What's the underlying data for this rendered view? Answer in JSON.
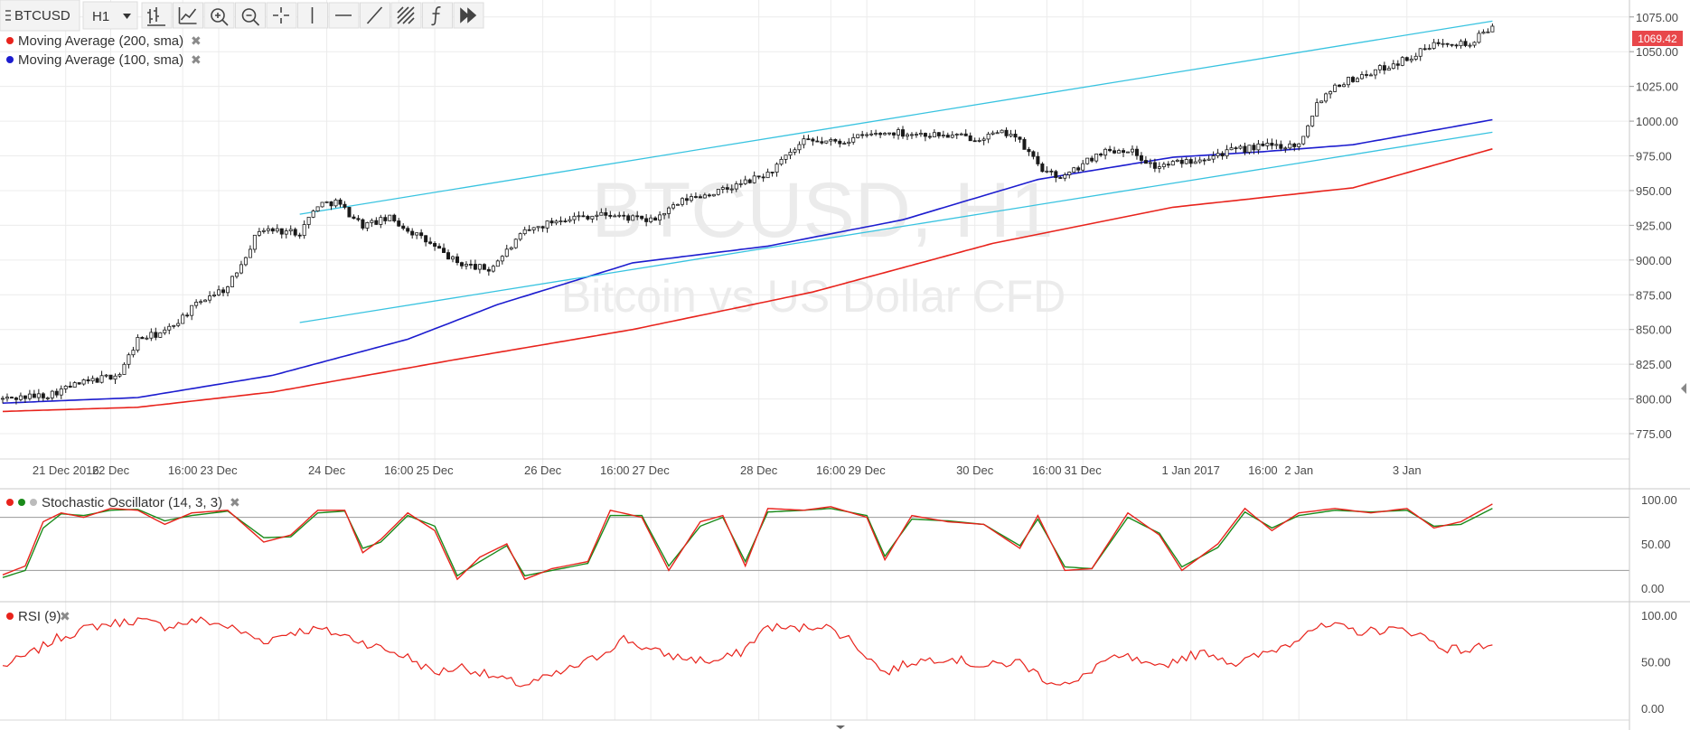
{
  "toolbar": {
    "symbol": "BTCUSD",
    "interval": "H1",
    "tools": [
      {
        "icon": "bar-style-icon"
      },
      {
        "icon": "indicators-icon"
      },
      {
        "icon": "zoom-in-icon"
      },
      {
        "icon": "zoom-out-icon"
      },
      {
        "icon": "crosshair-icon"
      },
      {
        "icon": "vertical-line-icon"
      },
      {
        "icon": "horizontal-line-icon"
      },
      {
        "icon": "trend-line-icon"
      },
      {
        "icon": "fib-icon"
      },
      {
        "icon": "function-icon"
      },
      {
        "icon": "forward-icon"
      }
    ]
  },
  "legend": [
    {
      "label": "Moving Average (200, sma)",
      "color": "#e8231c"
    },
    {
      "label": "Moving Average (100, sma)",
      "color": "#1c1ccf"
    }
  ],
  "watermark": {
    "symbol": "BTCUSD, H1",
    "description": "Bitcoin vs US Dollar CFD"
  },
  "price_badge": "1069.42",
  "stoch_label": "Stochastic Oscillator (14, 3, 3)",
  "rsi_label": "RSI (9)",
  "colors": {
    "candle": "#1a1a1a",
    "ma200": "#e8231c",
    "ma100": "#1c1ccf",
    "channel": "#38c3e0",
    "badge": "#e8474a",
    "stoch_k": "#e8231c",
    "stoch_d": "#1a8a1a",
    "rsi": "#e8231c",
    "grid": "#ececec"
  },
  "chart_data": {
    "type": "candlestick",
    "title": "BTCUSD, H1",
    "subtitle": "Bitcoin vs US Dollar CFD",
    "ylim": [
      762,
      1082
    ],
    "y_ticks": [
      "1075.00",
      "1050.00",
      "1025.00",
      "1000.00",
      "975.00",
      "950.00",
      "925.00",
      "900.00",
      "875.00",
      "850.00",
      "825.00",
      "800.00",
      "775.00"
    ],
    "x_ticks": [
      {
        "label": "21 Dec 2016",
        "bar": 14
      },
      {
        "label": "22 Dec",
        "bar": 24
      },
      {
        "label": "16:00",
        "bar": 40
      },
      {
        "label": "23 Dec",
        "bar": 48
      },
      {
        "label": "24 Dec",
        "bar": 72
      },
      {
        "label": "16:00",
        "bar": 88
      },
      {
        "label": "25 Dec",
        "bar": 96
      },
      {
        "label": "26 Dec",
        "bar": 120
      },
      {
        "label": "16:00",
        "bar": 136
      },
      {
        "label": "27 Dec",
        "bar": 144
      },
      {
        "label": "28 Dec",
        "bar": 168
      },
      {
        "label": "16:00",
        "bar": 184
      },
      {
        "label": "29 Dec",
        "bar": 192
      },
      {
        "label": "30 Dec",
        "bar": 216
      },
      {
        "label": "16:00",
        "bar": 232
      },
      {
        "label": "31 Dec",
        "bar": 240
      },
      {
        "label": "1 Jan 2017",
        "bar": 264
      },
      {
        "label": "16:00",
        "bar": 280
      },
      {
        "label": "2 Jan",
        "bar": 288
      },
      {
        "label": "3 Jan",
        "bar": 312
      }
    ],
    "bars": 331,
    "close_anchors": [
      [
        0,
        800
      ],
      [
        10,
        803
      ],
      [
        16,
        810
      ],
      [
        26,
        818
      ],
      [
        30,
        843
      ],
      [
        36,
        848
      ],
      [
        42,
        865
      ],
      [
        46,
        875
      ],
      [
        50,
        880
      ],
      [
        57,
        922
      ],
      [
        66,
        920
      ],
      [
        70,
        940
      ],
      [
        74,
        942
      ],
      [
        80,
        925
      ],
      [
        86,
        930
      ],
      [
        92,
        918
      ],
      [
        101,
        898
      ],
      [
        108,
        893
      ],
      [
        116,
        920
      ],
      [
        124,
        930
      ],
      [
        134,
        933
      ],
      [
        144,
        928
      ],
      [
        152,
        944
      ],
      [
        160,
        950
      ],
      [
        170,
        962
      ],
      [
        178,
        985
      ],
      [
        186,
        985
      ],
      [
        192,
        990
      ],
      [
        198,
        992
      ],
      [
        208,
        990
      ],
      [
        216,
        988
      ],
      [
        224,
        992
      ],
      [
        232,
        962
      ],
      [
        236,
        960
      ],
      [
        244,
        978
      ],
      [
        250,
        980
      ],
      [
        256,
        967
      ],
      [
        264,
        972
      ],
      [
        272,
        978
      ],
      [
        280,
        982
      ],
      [
        288,
        983
      ],
      [
        292,
        1013
      ],
      [
        296,
        1026
      ],
      [
        304,
        1035
      ],
      [
        312,
        1045
      ],
      [
        320,
        1058
      ],
      [
        326,
        1055
      ],
      [
        331,
        1069.42
      ]
    ],
    "series": [
      {
        "name": "Moving Average (200, sma)",
        "points": [
          [
            0,
            791
          ],
          [
            30,
            794
          ],
          [
            60,
            805
          ],
          [
            100,
            828
          ],
          [
            140,
            850
          ],
          [
            180,
            877
          ],
          [
            220,
            912
          ],
          [
            260,
            938
          ],
          [
            300,
            952
          ],
          [
            331,
            980
          ]
        ]
      },
      {
        "name": "Moving Average (100, sma)",
        "points": [
          [
            0,
            797
          ],
          [
            30,
            801
          ],
          [
            60,
            817
          ],
          [
            90,
            843
          ],
          [
            110,
            868
          ],
          [
            140,
            898
          ],
          [
            170,
            910
          ],
          [
            200,
            929
          ],
          [
            230,
            958
          ],
          [
            260,
            974
          ],
          [
            280,
            978
          ],
          [
            300,
            983
          ],
          [
            331,
            1001
          ]
        ]
      }
    ],
    "channel_lines": [
      {
        "from": [
          66,
          933
        ],
        "to": [
          331,
          1072
        ]
      },
      {
        "from": [
          66,
          855
        ],
        "to": [
          331,
          992
        ]
      }
    ],
    "stochastic": {
      "ylim": [
        0,
        100
      ],
      "y_ticks": [
        "100.00",
        "50.00",
        "0.00"
      ],
      "levels": [
        80,
        20
      ],
      "k": [
        [
          0,
          15
        ],
        [
          5,
          25
        ],
        [
          9,
          75
        ],
        [
          13,
          85
        ],
        [
          18,
          80
        ],
        [
          24,
          90
        ],
        [
          30,
          88
        ],
        [
          36,
          72
        ],
        [
          42,
          85
        ],
        [
          50,
          88
        ],
        [
          58,
          52
        ],
        [
          64,
          60
        ],
        [
          70,
          88
        ],
        [
          76,
          88
        ],
        [
          80,
          40
        ],
        [
          84,
          55
        ],
        [
          90,
          85
        ],
        [
          96,
          65
        ],
        [
          101,
          10
        ],
        [
          106,
          35
        ],
        [
          112,
          50
        ],
        [
          116,
          10
        ],
        [
          122,
          22
        ],
        [
          130,
          30
        ],
        [
          135,
          88
        ],
        [
          142,
          80
        ],
        [
          148,
          20
        ],
        [
          155,
          75
        ],
        [
          160,
          82
        ],
        [
          165,
          25
        ],
        [
          170,
          90
        ],
        [
          178,
          88
        ],
        [
          184,
          92
        ],
        [
          192,
          80
        ],
        [
          196,
          32
        ],
        [
          202,
          82
        ],
        [
          210,
          75
        ],
        [
          218,
          72
        ],
        [
          226,
          45
        ],
        [
          230,
          82
        ],
        [
          236,
          20
        ],
        [
          242,
          22
        ],
        [
          250,
          85
        ],
        [
          257,
          60
        ],
        [
          262,
          20
        ],
        [
          270,
          50
        ],
        [
          276,
          90
        ],
        [
          282,
          65
        ],
        [
          288,
          85
        ],
        [
          296,
          90
        ],
        [
          304,
          85
        ],
        [
          312,
          90
        ],
        [
          318,
          68
        ],
        [
          324,
          75
        ],
        [
          331,
          95
        ]
      ],
      "d": [
        [
          0,
          12
        ],
        [
          5,
          20
        ],
        [
          9,
          68
        ],
        [
          13,
          84
        ],
        [
          18,
          82
        ],
        [
          24,
          88
        ],
        [
          30,
          89
        ],
        [
          36,
          76
        ],
        [
          42,
          82
        ],
        [
          50,
          87
        ],
        [
          58,
          57
        ],
        [
          64,
          58
        ],
        [
          70,
          85
        ],
        [
          76,
          87
        ],
        [
          80,
          45
        ],
        [
          84,
          52
        ],
        [
          90,
          82
        ],
        [
          96,
          70
        ],
        [
          101,
          14
        ],
        [
          106,
          30
        ],
        [
          112,
          48
        ],
        [
          116,
          14
        ],
        [
          122,
          20
        ],
        [
          130,
          28
        ],
        [
          135,
          82
        ],
        [
          142,
          82
        ],
        [
          148,
          25
        ],
        [
          155,
          70
        ],
        [
          160,
          80
        ],
        [
          165,
          30
        ],
        [
          170,
          86
        ],
        [
          178,
          88
        ],
        [
          184,
          90
        ],
        [
          192,
          82
        ],
        [
          196,
          36
        ],
        [
          202,
          78
        ],
        [
          210,
          76
        ],
        [
          218,
          72
        ],
        [
          226,
          48
        ],
        [
          230,
          78
        ],
        [
          236,
          24
        ],
        [
          242,
          22
        ],
        [
          250,
          80
        ],
        [
          257,
          62
        ],
        [
          262,
          24
        ],
        [
          270,
          46
        ],
        [
          276,
          86
        ],
        [
          282,
          68
        ],
        [
          288,
          82
        ],
        [
          296,
          88
        ],
        [
          304,
          86
        ],
        [
          312,
          88
        ],
        [
          318,
          70
        ],
        [
          324,
          72
        ],
        [
          331,
          90
        ]
      ]
    },
    "rsi": {
      "ylim": [
        0,
        100
      ],
      "y_ticks": [
        "100.00",
        "50.00",
        "0.00"
      ],
      "values": [
        [
          0,
          45
        ],
        [
          6,
          58
        ],
        [
          12,
          75
        ],
        [
          20,
          88
        ],
        [
          30,
          95
        ],
        [
          36,
          88
        ],
        [
          44,
          95
        ],
        [
          50,
          88
        ],
        [
          58,
          72
        ],
        [
          64,
          82
        ],
        [
          70,
          85
        ],
        [
          76,
          78
        ],
        [
          82,
          68
        ],
        [
          90,
          55
        ],
        [
          96,
          38
        ],
        [
          102,
          45
        ],
        [
          110,
          32
        ],
        [
          116,
          25
        ],
        [
          124,
          38
        ],
        [
          132,
          55
        ],
        [
          138,
          75
        ],
        [
          144,
          62
        ],
        [
          150,
          55
        ],
        [
          158,
          50
        ],
        [
          164,
          60
        ],
        [
          170,
          88
        ],
        [
          176,
          85
        ],
        [
          182,
          90
        ],
        [
          188,
          75
        ],
        [
          196,
          38
        ],
        [
          202,
          50
        ],
        [
          210,
          55
        ],
        [
          218,
          45
        ],
        [
          226,
          50
        ],
        [
          232,
          30
        ],
        [
          238,
          25
        ],
        [
          244,
          50
        ],
        [
          250,
          55
        ],
        [
          256,
          42
        ],
        [
          262,
          55
        ],
        [
          268,
          60
        ],
        [
          274,
          48
        ],
        [
          280,
          58
        ],
        [
          286,
          70
        ],
        [
          290,
          85
        ],
        [
          296,
          88
        ],
        [
          302,
          82
        ],
        [
          308,
          85
        ],
        [
          314,
          82
        ],
        [
          320,
          65
        ],
        [
          326,
          62
        ],
        [
          331,
          72
        ]
      ]
    }
  }
}
